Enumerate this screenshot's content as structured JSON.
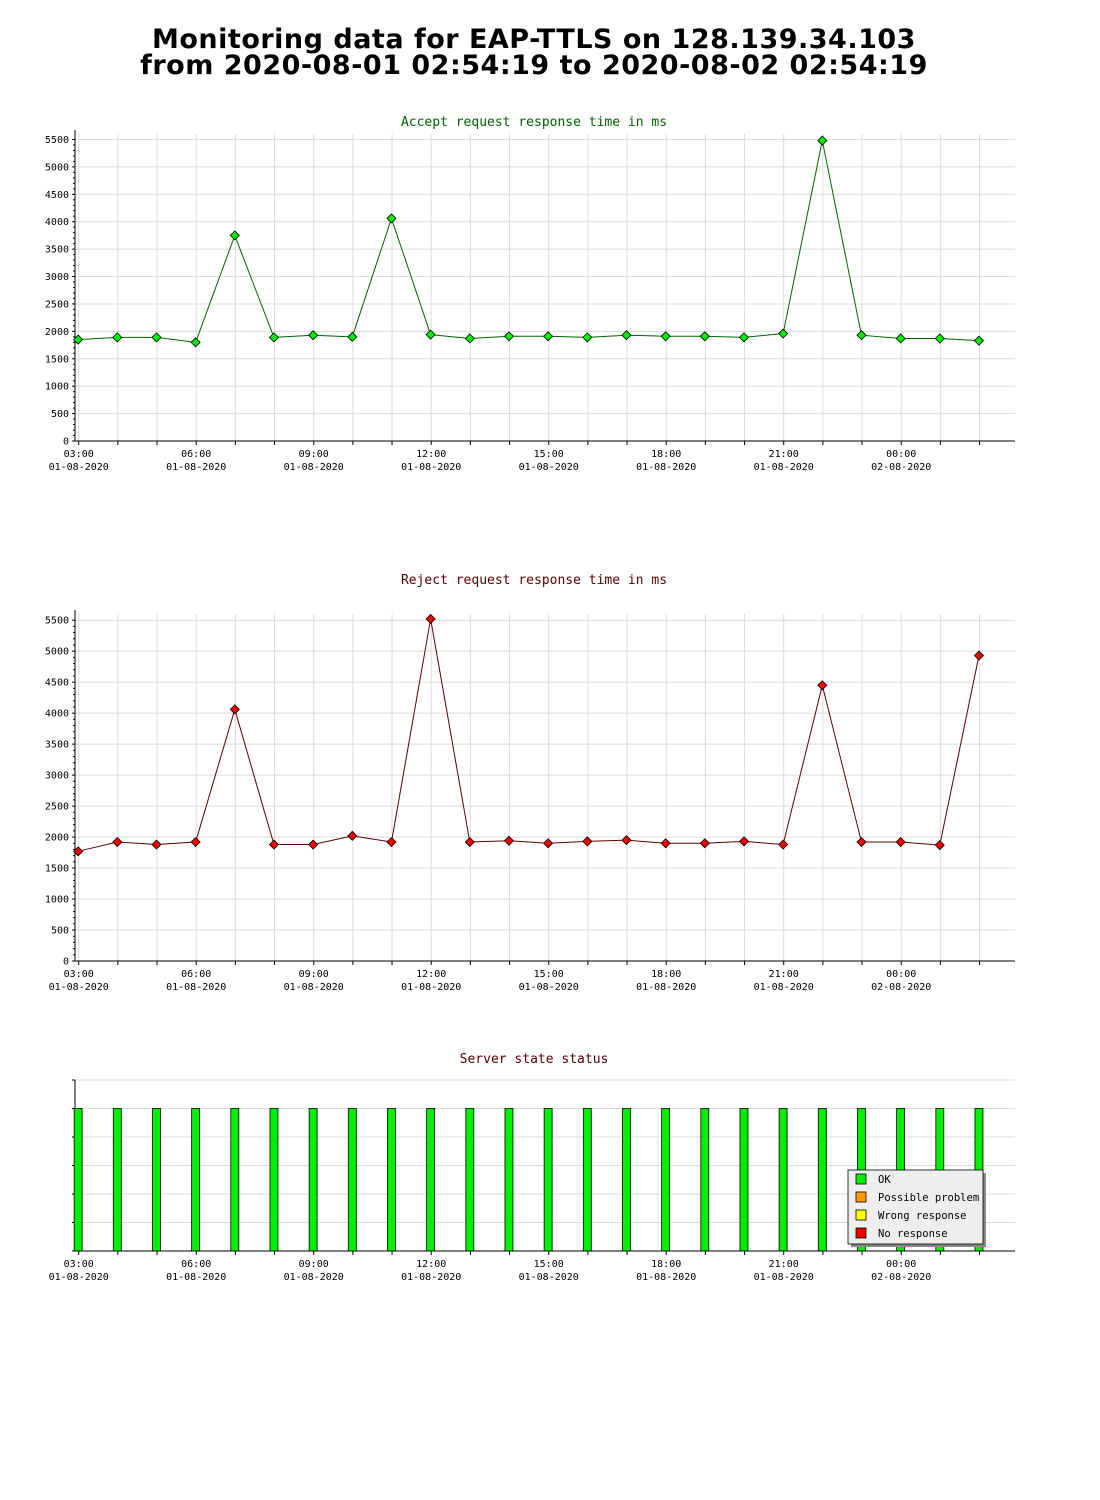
{
  "header": {
    "title_line1": "Monitoring data for EAP-TTLS on 128.139.34.103",
    "title_line2": "from 2020-08-01 02:54:19 to 2020-08-02 02:54:19"
  },
  "x_ticks": [
    {
      "time": "03:00",
      "date": "01-08-2020"
    },
    {
      "time": "06:00",
      "date": "01-08-2020"
    },
    {
      "time": "09:00",
      "date": "01-08-2020"
    },
    {
      "time": "12:00",
      "date": "01-08-2020"
    },
    {
      "time": "15:00",
      "date": "01-08-2020"
    },
    {
      "time": "18:00",
      "date": "01-08-2020"
    },
    {
      "time": "21:00",
      "date": "01-08-2020"
    },
    {
      "time": "00:00",
      "date": "02-08-2020"
    }
  ],
  "chart_data": [
    {
      "id": "accept",
      "type": "line",
      "title": "Accept request response time in ms",
      "title_color": "#006400",
      "line_color": "#006400",
      "marker_color": "#00ee00",
      "ylim": [
        0,
        5600
      ],
      "yticks": [
        0,
        500,
        1000,
        1500,
        2000,
        2500,
        3000,
        3500,
        4000,
        4500,
        5000,
        5500
      ],
      "x_hours": [
        0.08,
        1.08,
        2.08,
        3.08,
        4.08,
        5.08,
        6.08,
        7.08,
        8.08,
        9.08,
        10.08,
        11.08,
        12.08,
        13.08,
        14.08,
        15.08,
        16.08,
        17.08,
        18.08,
        19.08,
        20.08,
        21.08,
        22.08,
        23.08
      ],
      "values": [
        1850,
        1890,
        1890,
        1800,
        3750,
        1890,
        1930,
        1900,
        4060,
        1940,
        1870,
        1910,
        1910,
        1890,
        1930,
        1910,
        1910,
        1890,
        1960,
        5480,
        1930,
        1870,
        1870,
        1830
      ]
    },
    {
      "id": "reject",
      "type": "line",
      "title": "Reject request response time in ms",
      "title_color": "#5a0000",
      "line_color": "#5a0000",
      "marker_color": "#ee0000",
      "ylim": [
        0,
        5600
      ],
      "yticks": [
        0,
        500,
        1000,
        1500,
        2000,
        2500,
        3000,
        3500,
        4000,
        4500,
        5000,
        5500
      ],
      "x_hours": [
        0.08,
        1.08,
        2.08,
        3.08,
        4.08,
        5.08,
        6.08,
        7.08,
        8.08,
        9.08,
        10.08,
        11.08,
        12.08,
        13.08,
        14.08,
        15.08,
        16.08,
        17.08,
        18.08,
        19.08,
        20.08,
        21.08,
        22.08,
        23.08
      ],
      "values": [
        1770,
        1920,
        1880,
        1920,
        4060,
        1880,
        1880,
        2020,
        1920,
        5520,
        1920,
        1940,
        1900,
        1930,
        1950,
        1900,
        1900,
        1930,
        1880,
        4450,
        1920,
        1920,
        1870,
        4930
      ]
    },
    {
      "id": "status",
      "type": "bar",
      "title": "Server state status",
      "title_color": "#5a0000",
      "x_hours": [
        0.08,
        1.08,
        2.08,
        3.08,
        4.08,
        5.08,
        6.08,
        7.08,
        8.08,
        9.08,
        10.08,
        11.08,
        12.08,
        13.08,
        14.08,
        15.08,
        16.08,
        17.08,
        18.08,
        19.08,
        20.08,
        21.08,
        22.08,
        23.08
      ],
      "states": [
        "OK",
        "OK",
        "OK",
        "OK",
        "OK",
        "OK",
        "OK",
        "OK",
        "OK",
        "OK",
        "OK",
        "OK",
        "OK",
        "OK",
        "OK",
        "OK",
        "OK",
        "OK",
        "OK",
        "OK",
        "OK",
        "OK",
        "OK",
        "OK"
      ],
      "legend": [
        {
          "label": "OK",
          "color": "#00ee00"
        },
        {
          "label": "Possible problem",
          "color": "#ff9900"
        },
        {
          "label": "Wrong response",
          "color": "#ffff00"
        },
        {
          "label": "No response",
          "color": "#ee0000"
        }
      ],
      "legend_position": "bottom-right"
    }
  ]
}
